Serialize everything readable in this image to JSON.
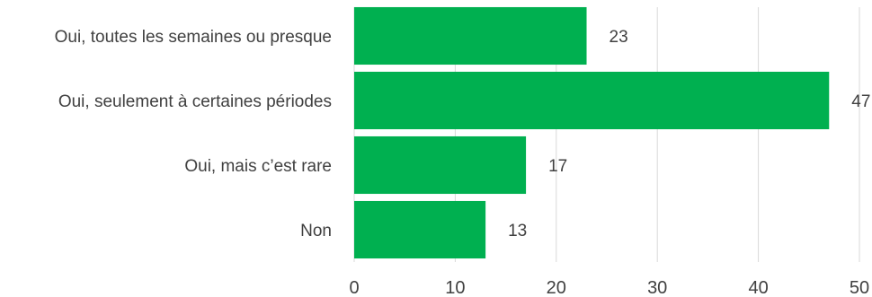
{
  "chart_data": {
    "type": "bar",
    "orientation": "horizontal",
    "categories": [
      "Oui, toutes les semaines ou presque",
      "Oui, seulement à certaines périodes",
      "Oui, mais c’est rare",
      "Non"
    ],
    "values": [
      23,
      47,
      17,
      13
    ],
    "data_labels": [
      "23",
      "47",
      "17",
      "13"
    ],
    "x_ticks": [
      0,
      10,
      20,
      30,
      40,
      50
    ],
    "x_tick_labels": [
      "0",
      "10",
      "20",
      "30",
      "40",
      "50"
    ],
    "xlim": [
      0,
      50
    ],
    "grid": true,
    "legend": "none",
    "colors": {
      "bar": "#00b050",
      "grid": "#d9d9d9",
      "text": "#404040"
    }
  }
}
